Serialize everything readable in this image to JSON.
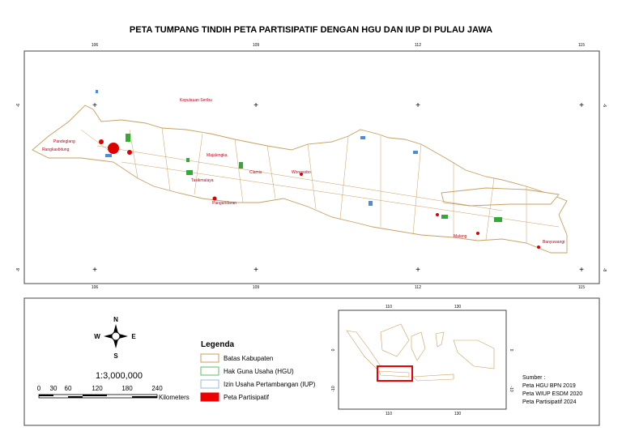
{
  "title": "PETA TUMPANG TINDIH PETA PARTISIPATIF DENGAN HGU DAN IUP DI PULAU JAWA",
  "map": {
    "lon_labels": [
      "106",
      "109",
      "112",
      "115"
    ],
    "lat_labels": [
      "-6",
      "-8"
    ],
    "places": [
      "Kepulauan Seribu",
      "Pandeglang",
      "Rangkasbitung",
      "Majalengka",
      "Ciamis",
      "Tasikmalaya",
      "Pangandaran",
      "Wonosobo",
      "Malang",
      "Banyuwangi"
    ]
  },
  "compass": {
    "n": "N",
    "e": "E",
    "s": "S",
    "w": "W"
  },
  "scale": {
    "ratio": "1:3,000,000",
    "ticks": [
      "0",
      "30",
      "60",
      "120",
      "180",
      "240"
    ],
    "unit": "Kilometers"
  },
  "legend": {
    "title": "Legenda",
    "items": [
      "Batas Kabupaten",
      "Hak Guna Usaha (HGU)",
      "Izin Usaha Pertambangan (IUP)",
      "Peta Partisipatif"
    ]
  },
  "inset": {
    "lon_labels": [
      "110",
      "130"
    ],
    "lat_labels": [
      "0",
      "-10"
    ]
  },
  "sources": {
    "heading": "Sumber :",
    "items": [
      "Peta HGU BPN 2019",
      "Peta WIUP ESDM 2020",
      "Peta Partisipatif 2024"
    ]
  }
}
